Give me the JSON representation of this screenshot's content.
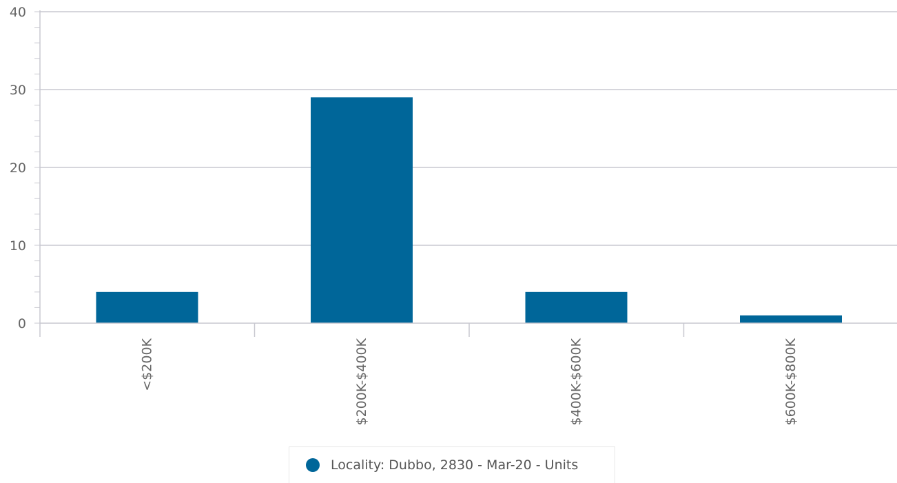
{
  "chart_data": {
    "type": "bar",
    "categories": [
      "<$200K",
      "$200K-$400K",
      "$400K-$600K",
      "$600K-$800K"
    ],
    "series": [
      {
        "name": "Locality: Dubbo, 2830 - Mar-20 - Units",
        "values": [
          4,
          29,
          4,
          1
        ],
        "color": "#006699"
      }
    ],
    "title": "",
    "xlabel": "",
    "ylabel": "",
    "ylim": [
      0,
      40
    ],
    "yticks": [
      0,
      10,
      20,
      30,
      40
    ],
    "grid": true,
    "legend": "bottom-center"
  },
  "colors": {
    "bar": "#006699",
    "grid": "#c8c8d0",
    "axis": "#c8c8d0",
    "text": "#666666"
  }
}
